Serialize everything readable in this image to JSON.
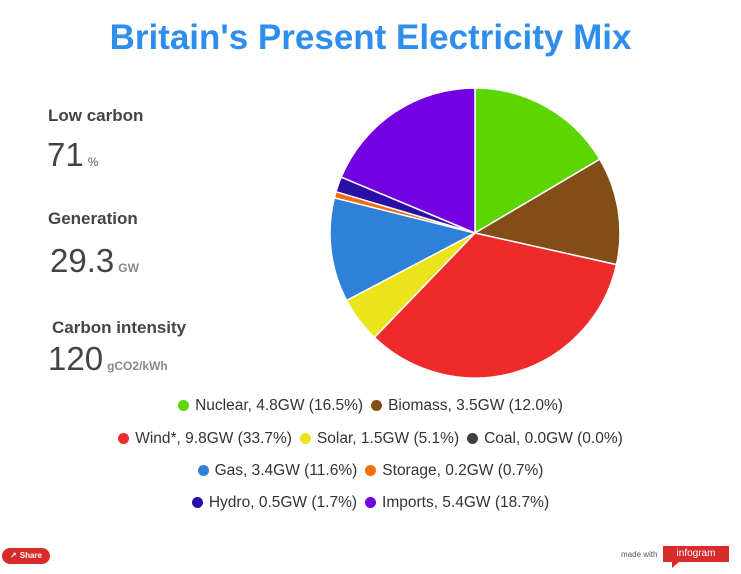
{
  "header": {
    "title": "Britain's Present Electricity Mix"
  },
  "stats": [
    {
      "label": "Low carbon",
      "value": "71",
      "unit": "%"
    },
    {
      "label": "Generation",
      "value": "29.3",
      "unit": "GW"
    },
    {
      "label": "Carbon intensity",
      "value": "120",
      "unit": "gCO2/kWh"
    }
  ],
  "chart_data": {
    "type": "pie",
    "slices": [
      {
        "name": "Nuclear",
        "value": 16.5,
        "color": "#5cd600"
      },
      {
        "name": "Biomass",
        "value": 12.0,
        "color": "#834d18"
      },
      {
        "name": "Wind*",
        "value": 33.7,
        "color": "#ee2b2b"
      },
      {
        "name": "Solar",
        "value": 5.1,
        "color": "#ebe41b"
      },
      {
        "name": "Coal",
        "value": 0.0,
        "color": "#404040"
      },
      {
        "name": "Gas",
        "value": 11.6,
        "color": "#2f80d8"
      },
      {
        "name": "Storage",
        "value": 0.7,
        "color": "#f06e0e"
      },
      {
        "name": "Hydro",
        "value": 1.7,
        "color": "#2a0ea6"
      },
      {
        "name": "Imports",
        "value": 18.7,
        "color": "#7300e0"
      }
    ],
    "legend_rows": [
      [
        {
          "text": "Nuclear, 4.8GW (16.5%)",
          "color": "#5cd600"
        },
        {
          "text": "Biomass, 3.5GW (12.0%)",
          "color": "#834d18"
        }
      ],
      [
        {
          "text": "Wind*, 9.8GW (33.7%)",
          "color": "#ee2b2b"
        },
        {
          "text": "Solar, 1.5GW (5.1%)",
          "color": "#ebe41b"
        },
        {
          "text": "Coal, 0.0GW (0.0%)",
          "color": "#404040"
        }
      ],
      [
        {
          "text": "Gas, 3.4GW (11.6%)",
          "color": "#2f80d8"
        },
        {
          "text": "Storage, 0.2GW (0.7%)",
          "color": "#f06e0e"
        }
      ],
      [
        {
          "text": "Hydro, 0.5GW (1.7%)",
          "color": "#2a0ea6"
        },
        {
          "text": "Imports, 5.4GW (18.7%)",
          "color": "#7300e0"
        }
      ]
    ],
    "legend_position": "bottom"
  },
  "footer": {
    "share_label": "Share",
    "share_icon": "share-icon",
    "made_with": "made with",
    "brand": "infogram"
  }
}
